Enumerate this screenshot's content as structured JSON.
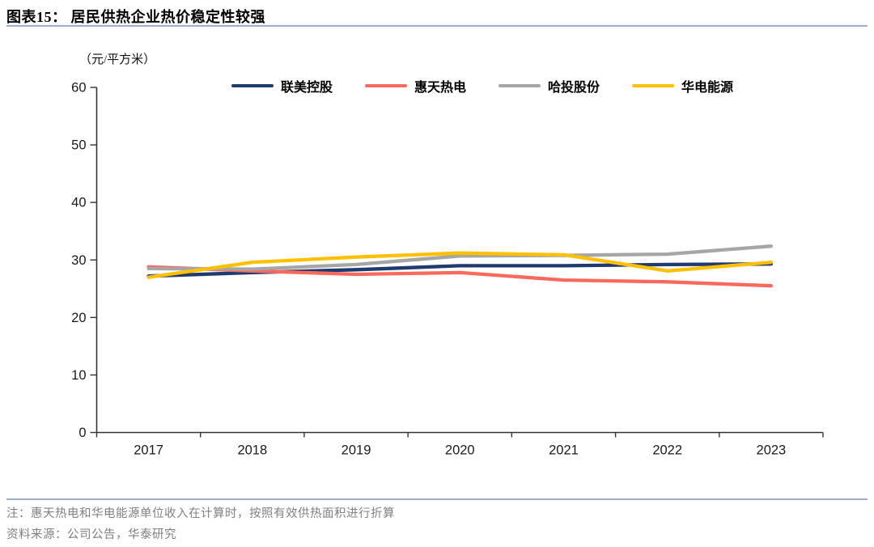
{
  "header": {
    "title": "图表15：  居民供热企业热价稳定性较强"
  },
  "chart_data": {
    "type": "line",
    "title": "居民供热企业热价稳定性较强",
    "unit_label": "（元/平方米）",
    "xlabel": "",
    "ylabel": "元/平方米",
    "categories": [
      "2017",
      "2018",
      "2019",
      "2020",
      "2021",
      "2022",
      "2023"
    ],
    "series": [
      {
        "name": "联美控股",
        "color": "#1F3A6E",
        "values": [
          27.2,
          27.8,
          28.3,
          29.0,
          29.0,
          29.2,
          29.3
        ]
      },
      {
        "name": "惠天热电",
        "color": "#F9695C",
        "values": [
          28.8,
          28.1,
          27.5,
          27.8,
          26.5,
          26.2,
          25.5
        ]
      },
      {
        "name": "哈投股份",
        "color": "#A6A6A6",
        "values": [
          28.5,
          28.4,
          29.2,
          30.7,
          30.8,
          31.0,
          32.4
        ]
      },
      {
        "name": "华电能源",
        "color": "#FFC000",
        "values": [
          27.0,
          29.6,
          30.5,
          31.2,
          30.9,
          28.1,
          29.6
        ]
      }
    ],
    "ylim": [
      0,
      60
    ],
    "y_ticks": [
      0,
      10,
      20,
      30,
      40,
      50,
      60
    ],
    "grid": false,
    "legend_position": "top"
  },
  "notes": {
    "note": "注：惠天热电和华电能源单位收入在计算时，按照有效供热面积进行折算",
    "source": "资料来源：公司公告，华泰研究"
  },
  "colors": {
    "divider": "#9CAECB",
    "axis": "#333333",
    "tick_text": "#1a1a1a",
    "note_text": "#808080"
  }
}
